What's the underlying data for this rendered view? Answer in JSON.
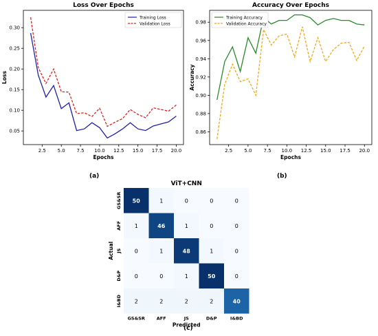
{
  "captions": {
    "a": "(a)",
    "b": "(b)",
    "c": "(c)"
  },
  "chart_data": [
    {
      "type": "line",
      "title": "Loss Over Epochs",
      "xlabel": "Epochs",
      "ylabel": "Loss",
      "xlim": [
        0.05,
        20.95
      ],
      "ylim": [
        0.017,
        0.342
      ],
      "xticks": [
        2.5,
        5.0,
        7.5,
        10.0,
        12.5,
        15.0,
        17.5,
        20.0
      ],
      "yticks": [
        0.05,
        0.1,
        0.15,
        0.2,
        0.25,
        0.3
      ],
      "grid": false,
      "legend": "top-right",
      "x": [
        1,
        2,
        3,
        4,
        5,
        6,
        7,
        8,
        9,
        10,
        11,
        12,
        13,
        14,
        15,
        16,
        17,
        18,
        19,
        20
      ],
      "series": [
        {
          "name": "Training Loss",
          "color": "#1f1fa8",
          "dash": "solid",
          "values": [
            0.287,
            0.185,
            0.132,
            0.16,
            0.104,
            0.118,
            0.051,
            0.055,
            0.07,
            0.058,
            0.033,
            0.043,
            0.055,
            0.07,
            0.055,
            0.051,
            0.062,
            0.067,
            0.072,
            0.086
          ]
        },
        {
          "name": "Validation Loss",
          "color": "#e02020",
          "dash": "dashed",
          "values": [
            0.325,
            0.203,
            0.165,
            0.2,
            0.145,
            0.144,
            0.092,
            0.094,
            0.085,
            0.105,
            0.061,
            0.071,
            0.08,
            0.102,
            0.09,
            0.082,
            0.106,
            0.102,
            0.098,
            0.113
          ]
        }
      ]
    },
    {
      "type": "line",
      "title": "Accuracy Over Epochs",
      "xlabel": "Epochs",
      "ylabel": "Accuracy",
      "xlim": [
        0.05,
        20.95
      ],
      "ylim": [
        0.846,
        0.993
      ],
      "xticks": [
        2.5,
        5.0,
        7.5,
        10.0,
        12.5,
        15.0,
        17.5,
        20.0
      ],
      "yticks": [
        0.86,
        0.88,
        0.9,
        0.92,
        0.94,
        0.96,
        0.98
      ],
      "grid": false,
      "legend": "top-left",
      "x": [
        1,
        2,
        3,
        4,
        5,
        6,
        7,
        8,
        9,
        10,
        11,
        12,
        13,
        14,
        15,
        16,
        17,
        18,
        19,
        20
      ],
      "series": [
        {
          "name": "Training Accuracy",
          "color": "#2a8a2a",
          "dash": "solid",
          "values": [
            0.895,
            0.937,
            0.953,
            0.926,
            0.963,
            0.946,
            0.985,
            0.978,
            0.982,
            0.982,
            0.988,
            0.988,
            0.985,
            0.977,
            0.982,
            0.984,
            0.982,
            0.982,
            0.978,
            0.977
          ]
        },
        {
          "name": "Validation Accuracy",
          "color": "#f2a81a",
          "dash": "dashed",
          "values": [
            0.852,
            0.912,
            0.934,
            0.915,
            0.918,
            0.9,
            0.972,
            0.955,
            0.965,
            0.967,
            0.942,
            0.975,
            0.937,
            0.963,
            0.937,
            0.95,
            0.957,
            0.958,
            0.938,
            0.954
          ]
        }
      ]
    },
    {
      "type": "heatmap",
      "title": "ViT+CNN",
      "xlabel": "Predicted",
      "ylabel": "Actual",
      "labels": [
        "GS&SR",
        "AFF",
        "JS",
        "D&P",
        "I&BD"
      ],
      "matrix": [
        [
          50,
          1,
          0,
          0,
          0
        ],
        [
          1,
          46,
          1,
          0,
          0
        ],
        [
          0,
          1,
          48,
          1,
          0
        ],
        [
          0,
          0,
          1,
          50,
          0
        ],
        [
          2,
          2,
          2,
          2,
          40
        ]
      ],
      "colormap": "Blues",
      "vmax": 50
    }
  ]
}
